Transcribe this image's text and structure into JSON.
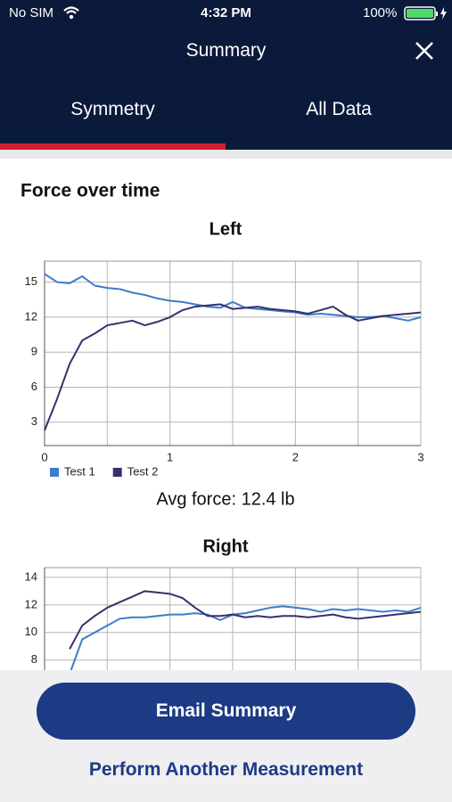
{
  "status_bar": {
    "carrier": "No SIM",
    "time": "4:32 PM",
    "battery": "100%"
  },
  "header": {
    "title": "Summary"
  },
  "tabs": [
    "Symmetry",
    "All Data"
  ],
  "section_title": "Force over time",
  "avg_force": "Avg force: 12.4 lb",
  "buttons": {
    "email": "Email Summary",
    "another": "Perform Another Measurement"
  },
  "chart_data": [
    {
      "type": "line",
      "title": "Left",
      "x": [
        0,
        0.1,
        0.2,
        0.3,
        0.4,
        0.5,
        0.6,
        0.7,
        0.8,
        0.9,
        1.0,
        1.1,
        1.2,
        1.3,
        1.4,
        1.5,
        1.6,
        1.7,
        1.8,
        1.9,
        2.0,
        2.1,
        2.2,
        2.3,
        2.4,
        2.5,
        2.6,
        2.7,
        2.8,
        2.9,
        3.0
      ],
      "series": [
        {
          "name": "Test 1",
          "color": "#3d7cc9",
          "values": [
            15.7,
            15.0,
            14.9,
            15.5,
            14.7,
            14.5,
            14.4,
            14.1,
            13.9,
            13.6,
            13.4,
            13.3,
            13.1,
            12.9,
            12.8,
            13.3,
            12.8,
            12.7,
            12.6,
            12.5,
            12.4,
            12.2,
            12.3,
            12.2,
            12.1,
            12.0,
            12.0,
            12.1,
            11.9,
            11.7,
            12.0
          ]
        },
        {
          "name": "Test 2",
          "color": "#3a2f6b",
          "values": [
            2.3,
            5.0,
            8.0,
            10.0,
            10.6,
            11.3,
            11.5,
            11.7,
            11.3,
            11.6,
            12.0,
            12.6,
            12.9,
            13.0,
            13.1,
            12.7,
            12.8,
            12.9,
            12.7,
            12.6,
            12.5,
            12.3,
            12.6,
            12.9,
            12.2,
            11.7,
            11.9,
            12.1,
            12.2,
            12.3,
            12.4
          ]
        }
      ],
      "xlim": [
        0,
        3
      ],
      "xticks": [
        0,
        1,
        2,
        3
      ],
      "x_gridlines": [
        0,
        0.5,
        1,
        1.5,
        2,
        2.5,
        3
      ],
      "ylim": [
        1,
        16.8
      ],
      "yticks": [
        3,
        6,
        9,
        12,
        15
      ],
      "grid": true,
      "legend": "bottom-left"
    },
    {
      "type": "line",
      "title": "Right",
      "x": [
        0.2,
        0.3,
        0.4,
        0.5,
        0.6,
        0.7,
        0.8,
        0.9,
        1.0,
        1.1,
        1.2,
        1.3,
        1.4,
        1.5,
        1.6,
        1.7,
        1.8,
        1.9,
        2.0,
        2.1,
        2.2,
        2.3,
        2.4,
        2.5,
        2.6,
        2.7,
        2.8,
        2.9,
        3.0
      ],
      "series": [
        {
          "color": "#3d7cc9",
          "values": [
            7.0,
            9.5,
            10,
            10.5,
            11,
            11.1,
            11.1,
            11.2,
            11.3,
            11.3,
            11.4,
            11.3,
            10.9,
            11.3,
            11.4,
            11.6,
            11.8,
            11.9,
            11.8,
            11.7,
            11.5,
            11.7,
            11.6,
            11.7,
            11.6,
            11.5,
            11.6,
            11.5,
            11.8
          ]
        },
        {
          "color": "#3a2f6b",
          "values": [
            8.8,
            10.5,
            11.2,
            11.8,
            12.2,
            12.6,
            13.0,
            12.9,
            12.8,
            12.5,
            11.8,
            11.2,
            11.2,
            11.3,
            11.1,
            11.2,
            11.1,
            11.2,
            11.2,
            11.1,
            11.2,
            11.3,
            11.1,
            11.0,
            11.1,
            11.2,
            11.3,
            11.4,
            11.5
          ]
        }
      ],
      "xlim": [
        0,
        3
      ],
      "x_gridlines": [
        0,
        0.5,
        1,
        1.5,
        2,
        2.5,
        3
      ],
      "ylim": [
        1.4,
        14.7
      ],
      "yticks": [
        8,
        10,
        12,
        14
      ],
      "grid": true
    }
  ]
}
